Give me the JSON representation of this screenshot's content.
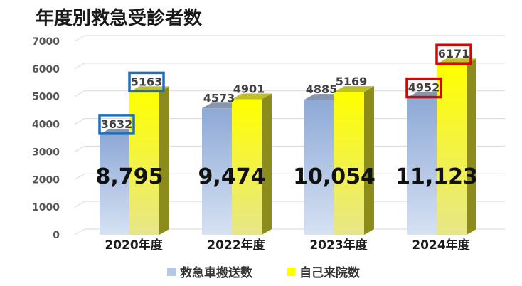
{
  "chart_data": {
    "type": "bar",
    "title": "年度別救急受診者数",
    "categories": [
      "2020年度",
      "2022年度",
      "2023年度",
      "2024年度"
    ],
    "series": [
      {
        "name": "救急車搬送数",
        "values": [
          3632,
          4573,
          4885,
          4952
        ],
        "color": "#b4c7e7"
      },
      {
        "name": "自己来院数",
        "values": [
          5163,
          4901,
          5169,
          6171
        ],
        "color": "#ffff33"
      }
    ],
    "totals": [
      "8,795",
      "9,474",
      "10,054",
      "11,123"
    ],
    "ylim": [
      0,
      7000
    ],
    "yticks": [
      0,
      1000,
      2000,
      3000,
      4000,
      5000,
      6000,
      7000
    ],
    "grid": true,
    "legend_position": "bottom",
    "highlights": [
      {
        "category_index": 0,
        "series_index": 0,
        "color": "#1f6fbf"
      },
      {
        "category_index": 0,
        "series_index": 1,
        "color": "#1f6fbf"
      },
      {
        "category_index": 3,
        "series_index": 0,
        "color": "#e00000"
      },
      {
        "category_index": 3,
        "series_index": 1,
        "color": "#e00000"
      }
    ]
  }
}
